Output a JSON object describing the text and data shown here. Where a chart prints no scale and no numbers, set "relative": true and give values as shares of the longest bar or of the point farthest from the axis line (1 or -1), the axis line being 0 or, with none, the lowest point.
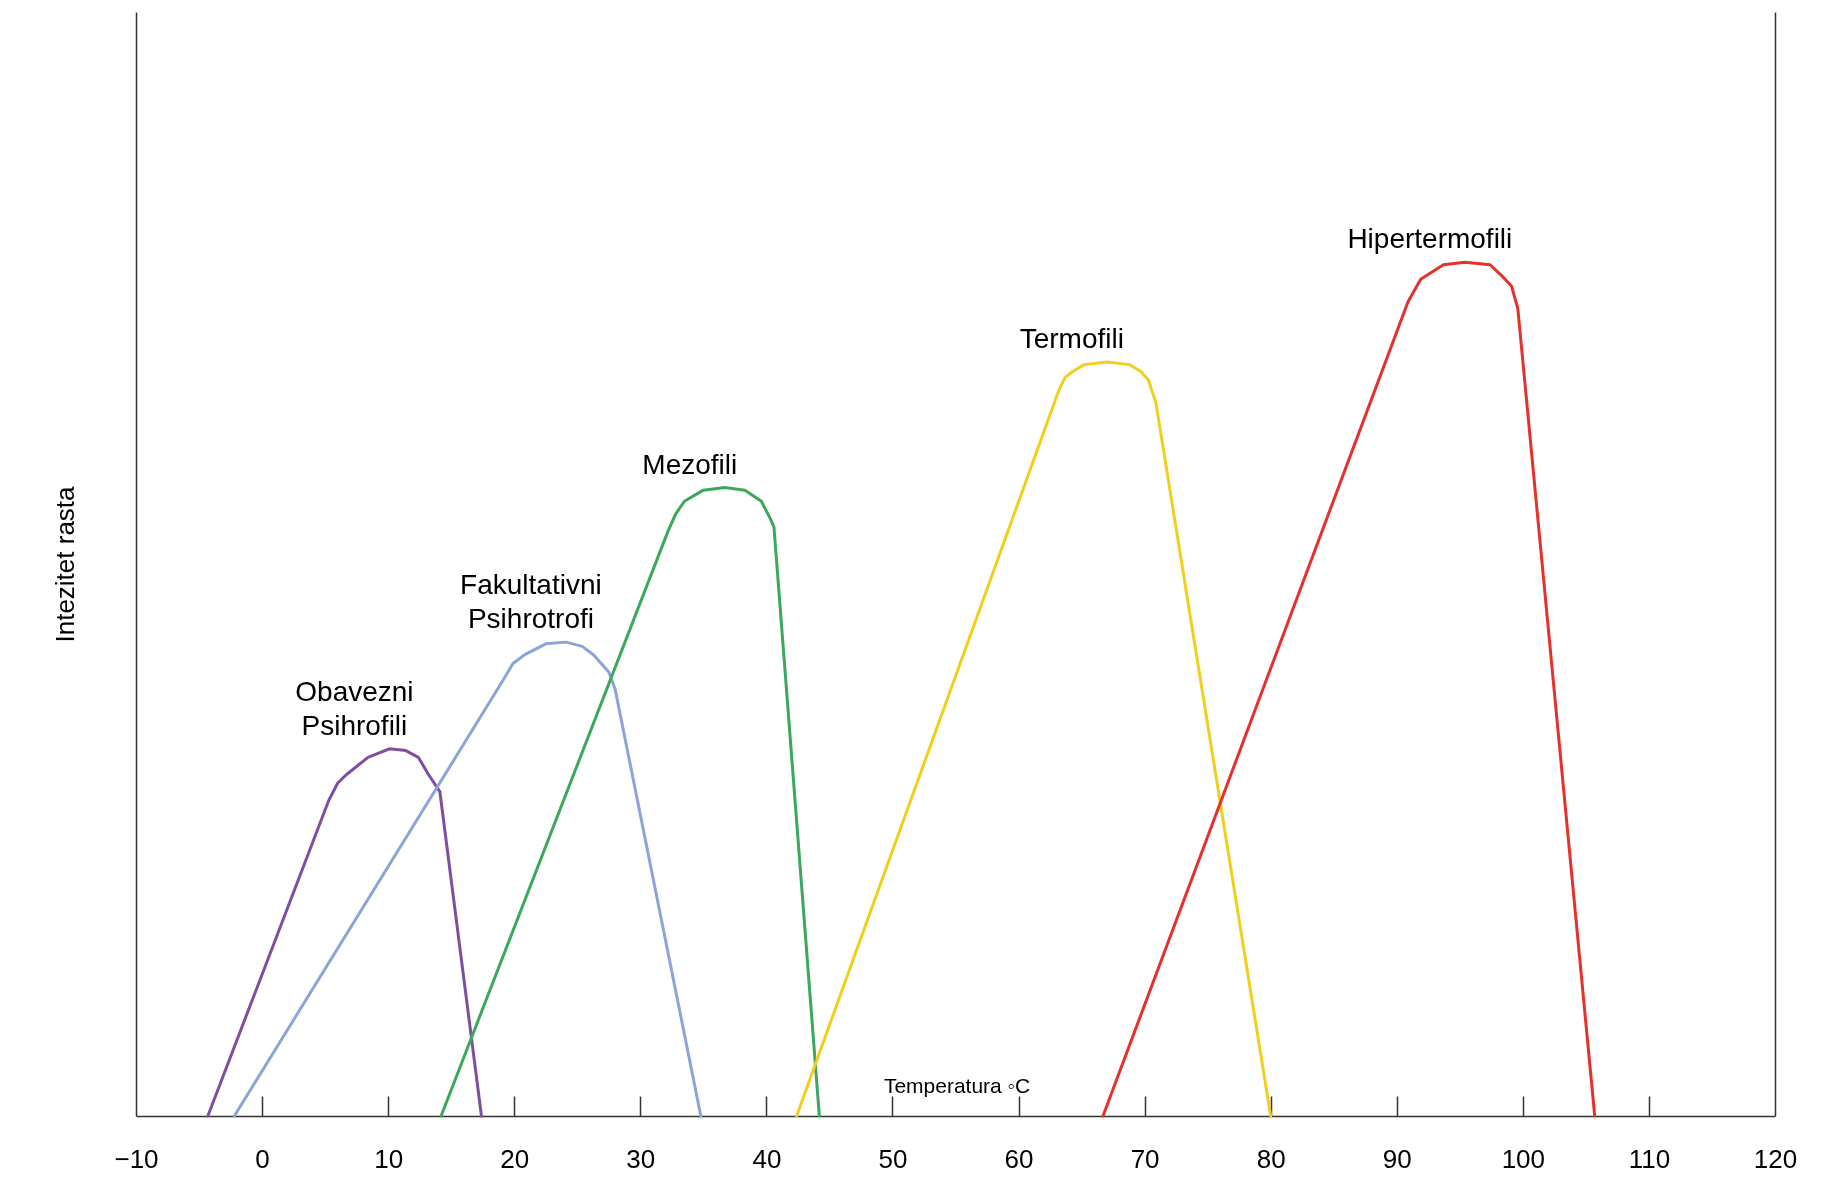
{
  "chart_data": {
    "type": "line",
    "relative": true,
    "xlabel": "Temperatura ◦C",
    "ylabel": "Intezitet rasta",
    "xlim": [
      -10,
      120
    ],
    "xticks": [
      -10,
      0,
      10,
      20,
      30,
      40,
      50,
      60,
      70,
      80,
      90,
      100,
      110,
      120
    ],
    "series": [
      {
        "name": "Obavezni Psihrofili",
        "color": "#7e4fa0",
        "x": [
          -4.3,
          5.3,
          6.0,
          6.7,
          8.4,
          10.1,
          11.4,
          12.4,
          13.2,
          14.1,
          17.4
        ],
        "values": [
          0,
          0.37,
          0.39,
          0.4,
          0.42,
          0.43,
          0.428,
          0.42,
          0.4,
          0.38,
          0
        ]
      },
      {
        "name": "Fakultativni Psihrotrofi",
        "color": "#8da4d8",
        "x": [
          -2.2,
          19.1,
          19.9,
          20.8,
          22.5,
          24.1,
          25.4,
          26.3,
          27.5,
          28.0,
          34.8
        ],
        "values": [
          0,
          0.51,
          0.53,
          0.54,
          0.553,
          0.555,
          0.55,
          0.54,
          0.52,
          0.5,
          0
        ]
      },
      {
        "name": "Mezofili",
        "color": "#3ca85c",
        "x": [
          14.2,
          32.2,
          32.8,
          33.5,
          35.0,
          36.7,
          38.3,
          39.6,
          40.3,
          40.6,
          44.2
        ],
        "values": [
          0,
          0.685,
          0.705,
          0.72,
          0.733,
          0.736,
          0.733,
          0.72,
          0.7,
          0.69,
          0
        ]
      },
      {
        "name": "Termofili",
        "color": "#f2cf1d",
        "x": [
          42.4,
          63.2,
          63.7,
          64.3,
          65.2,
          67.0,
          68.8,
          69.7,
          70.3,
          70.9,
          80.0
        ],
        "values": [
          0,
          0.85,
          0.865,
          0.872,
          0.88,
          0.883,
          0.88,
          0.872,
          0.862,
          0.835,
          0
        ]
      },
      {
        "name": "Hipertermofili",
        "color": "#e4322b",
        "x": [
          66.7,
          90.9,
          91.9,
          93.7,
          95.4,
          97.4,
          98.4,
          99.1,
          99.6,
          105.7
        ],
        "values": [
          0,
          0.954,
          0.98,
          0.997,
          1,
          0.997,
          0.983,
          0.972,
          0.946,
          0
        ]
      }
    ]
  }
}
